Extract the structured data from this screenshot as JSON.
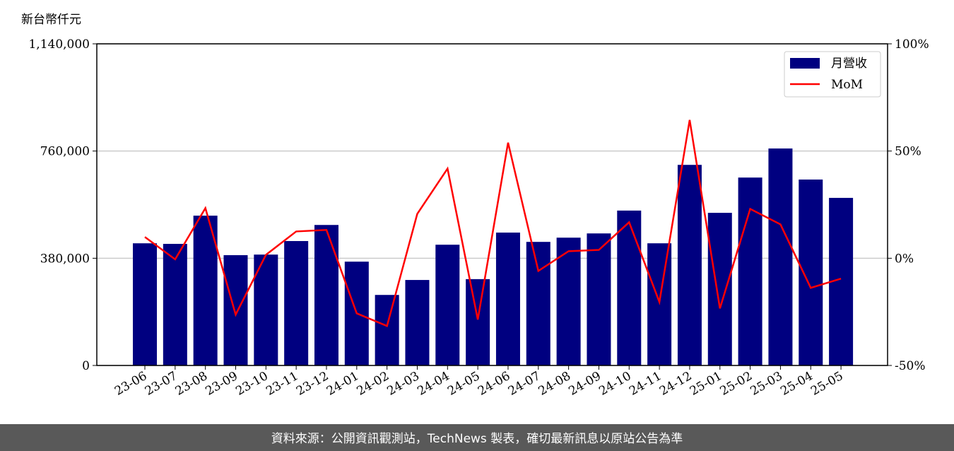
{
  "chart_data": {
    "type": "bar",
    "y_label": "新台幣仟元",
    "categories": [
      "23-06",
      "23-07",
      "23-08",
      "23-09",
      "23-10",
      "23-11",
      "23-12",
      "24-01",
      "24-02",
      "24-03",
      "24-04",
      "24-05",
      "24-06",
      "24-07",
      "24-08",
      "24-09",
      "24-10",
      "24-11",
      "24-12",
      "25-01",
      "25-02",
      "25-03",
      "25-04",
      "25-05"
    ],
    "series": [
      {
        "name": "月營收",
        "type": "bar",
        "color": "#000080",
        "values": [
          433000,
          431000,
          531000,
          391000,
          393000,
          441000,
          498000,
          368000,
          250000,
          303000,
          428000,
          306000,
          471000,
          438000,
          453000,
          468000,
          549000,
          433000,
          711000,
          541000,
          666000,
          769000,
          659000,
          594000
        ]
      },
      {
        "name": "MoM",
        "type": "line",
        "axis": "y2",
        "color": "#ff0000",
        "values": [
          9.9,
          -0.5,
          23.4,
          -26.3,
          1.6,
          12.5,
          13.2,
          -25.7,
          -31.6,
          20.7,
          41.8,
          -28.6,
          53.9,
          -5.9,
          3.3,
          3.9,
          16.8,
          -20.4,
          64.5,
          -23.4,
          23.0,
          15.8,
          -13.8,
          -9.5
        ]
      }
    ],
    "ylim": [
      0,
      1140000
    ],
    "yticks": [
      0,
      {
        "value": 380000,
        "label": "380,000"
      },
      {
        "value": 760000,
        "label": "760,000"
      },
      {
        "value": 1140000,
        "label": "1,140,000"
      }
    ],
    "y2lim": [
      -50,
      100
    ],
    "y2ticks": [
      {
        "value": -50,
        "label": "-50%"
      },
      {
        "value": 0,
        "label": "0%"
      },
      {
        "value": 50,
        "label": "50%"
      },
      {
        "value": 100,
        "label": "100%"
      }
    ],
    "grid": true,
    "legend": "upper right",
    "footer": "資料來源：公開資訊觀測站，TechNews 製表，確切最新訊息以原站公告為準"
  }
}
